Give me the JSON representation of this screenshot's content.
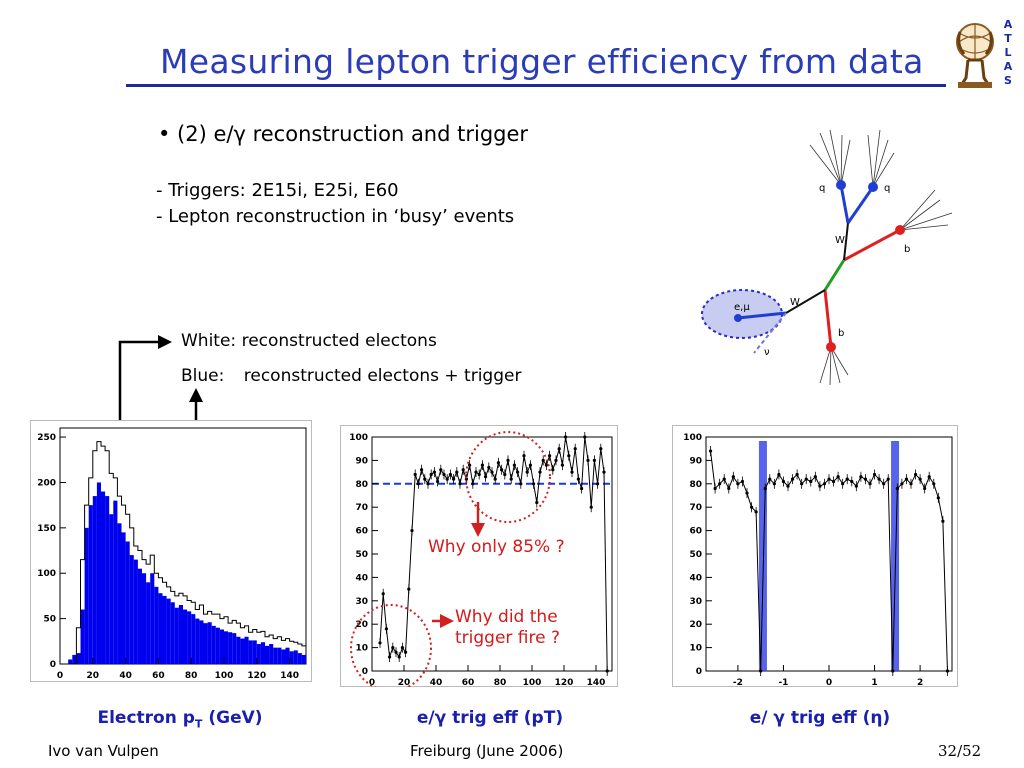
{
  "slide": {
    "title": "Measuring lepton trigger efficiency from data",
    "bullet": "• (2) e/γ reconstruction and trigger",
    "sub_lines": [
      "- Triggers: 2E15i, E25i, E60",
      "- Lepton reconstruction in ‘busy’ events"
    ],
    "legend_white_key": "White:",
    "legend_white_text": "reconstructed electons",
    "legend_blue_key": "Blue:",
    "legend_blue_text": "reconstructed electons + trigger",
    "annotation_85": "Why only 85% ?",
    "annotation_fire_1": "Why did the",
    "annotation_fire_2": "trigger fire ?",
    "footer_left": "Ivo van Vulpen",
    "footer_center": "Freiburg (June 2006)",
    "footer_right": "32/52",
    "logo_letters": [
      "A",
      "T",
      "L",
      "A",
      "S"
    ]
  },
  "diagram": {
    "labels": [
      "q",
      "q",
      "W",
      "b",
      "W",
      "e,μ",
      "ν",
      "b"
    ],
    "colors": {
      "quark_jets": "#1f3fd0",
      "b_jet": "#e02020",
      "top": "#20a020",
      "lepton_ellipse": "#c8ccf0",
      "lepton_border": "#2a2ad0"
    }
  },
  "chart_data": [
    {
      "type": "bar",
      "caption_main": "Electron p",
      "caption_sub": "T",
      "caption_unit": " (GeV)",
      "xlim": [
        0,
        150
      ],
      "ylim": [
        0,
        260
      ],
      "xticks": [
        "0",
        "20",
        "40",
        "60",
        "80",
        "100",
        "120",
        "140"
      ],
      "yticks": [
        "0",
        "50",
        "100",
        "150",
        "200",
        "250"
      ],
      "bin_width": 2.5,
      "series": [
        {
          "name": "White",
          "fill": "#ffffff",
          "values": [
            0,
            0,
            0,
            0,
            40,
            115,
            175,
            205,
            235,
            245,
            240,
            235,
            210,
            205,
            185,
            175,
            165,
            150,
            130,
            125,
            115,
            110,
            120,
            100,
            95,
            90,
            85,
            80,
            75,
            78,
            75,
            70,
            68,
            60,
            65,
            55,
            58,
            55,
            55,
            50,
            52,
            45,
            48,
            45,
            40,
            42,
            35,
            38,
            35,
            36,
            30,
            32,
            28,
            30,
            26,
            28,
            25,
            24,
            22,
            20
          ]
        },
        {
          "name": "Blue",
          "fill": "#0000ee",
          "values": [
            0,
            0,
            5,
            10,
            12,
            60,
            150,
            175,
            185,
            200,
            190,
            185,
            165,
            180,
            155,
            145,
            135,
            120,
            115,
            105,
            100,
            90,
            100,
            85,
            78,
            75,
            72,
            68,
            62,
            65,
            60,
            58,
            55,
            50,
            48,
            45,
            46,
            42,
            40,
            38,
            36,
            35,
            34,
            30,
            28,
            30,
            26,
            26,
            22,
            24,
            20,
            22,
            18,
            18,
            16,
            18,
            14,
            15,
            12,
            10
          ]
        }
      ]
    },
    {
      "type": "scatter",
      "caption": "e/γ trig eff (pT)",
      "xlim": [
        0,
        150
      ],
      "ylim": [
        0,
        100
      ],
      "xticks": [
        "0",
        "20",
        "40",
        "60",
        "80",
        "100",
        "120",
        "140"
      ],
      "yticks": [
        "0",
        "10",
        "20",
        "30",
        "40",
        "50",
        "60",
        "70",
        "80",
        "90",
        "100"
      ],
      "reference_line": 80,
      "points": [
        [
          5,
          12
        ],
        [
          7,
          33
        ],
        [
          9,
          18
        ],
        [
          11,
          6
        ],
        [
          13,
          10
        ],
        [
          15,
          8
        ],
        [
          17,
          6
        ],
        [
          19,
          10
        ],
        [
          21,
          8
        ],
        [
          23,
          35
        ],
        [
          25,
          60
        ],
        [
          27,
          84
        ],
        [
          29,
          80
        ],
        [
          31,
          86
        ],
        [
          33,
          82
        ],
        [
          35,
          80
        ],
        [
          37,
          84
        ],
        [
          39,
          85
        ],
        [
          41,
          81
        ],
        [
          43,
          86
        ],
        [
          45,
          84
        ],
        [
          47,
          82
        ],
        [
          49,
          84
        ],
        [
          51,
          82
        ],
        [
          53,
          85
        ],
        [
          55,
          80
        ],
        [
          57,
          86
        ],
        [
          59,
          82
        ],
        [
          61,
          88
        ],
        [
          63,
          80
        ],
        [
          65,
          85
        ],
        [
          67,
          84
        ],
        [
          69,
          88
        ],
        [
          71,
          83
        ],
        [
          73,
          87
        ],
        [
          75,
          85
        ],
        [
          77,
          82
        ],
        [
          79,
          89
        ],
        [
          81,
          86
        ],
        [
          83,
          84
        ],
        [
          85,
          90
        ],
        [
          87,
          82
        ],
        [
          89,
          88
        ],
        [
          91,
          85
        ],
        [
          93,
          80
        ],
        [
          95,
          92
        ],
        [
          97,
          85
        ],
        [
          99,
          88
        ],
        [
          101,
          80
        ],
        [
          103,
          72
        ],
        [
          105,
          85
        ],
        [
          107,
          90
        ],
        [
          109,
          88
        ],
        [
          111,
          92
        ],
        [
          113,
          86
        ],
        [
          115,
          90
        ],
        [
          117,
          95
        ],
        [
          119,
          88
        ],
        [
          121,
          100
        ],
        [
          123,
          92
        ],
        [
          125,
          85
        ],
        [
          127,
          95
        ],
        [
          129,
          82
        ],
        [
          131,
          78
        ],
        [
          133,
          100
        ],
        [
          135,
          90
        ],
        [
          137,
          70
        ],
        [
          139,
          90
        ],
        [
          141,
          80
        ],
        [
          143,
          95
        ],
        [
          145,
          85
        ],
        [
          147,
          0
        ]
      ]
    },
    {
      "type": "scatter",
      "caption": "e/ γ trig eff (η)",
      "xlim": [
        -2.7,
        2.7
      ],
      "ylim": [
        0,
        100
      ],
      "xticks": [
        "-2",
        "-1",
        "0",
        "1",
        "2"
      ],
      "yticks": [
        "0",
        "10",
        "20",
        "30",
        "40",
        "50",
        "60",
        "70",
        "80",
        "90",
        "100"
      ],
      "bands": [
        {
          "x": -1.45,
          "color": "#3a48e8"
        },
        {
          "x": 1.45,
          "color": "#3a48e8"
        }
      ],
      "points": [
        [
          -2.6,
          94
        ],
        [
          -2.5,
          78
        ],
        [
          -2.4,
          80
        ],
        [
          -2.3,
          82
        ],
        [
          -2.2,
          78
        ],
        [
          -2.1,
          83
        ],
        [
          -2.0,
          80
        ],
        [
          -1.9,
          81
        ],
        [
          -1.8,
          76
        ],
        [
          -1.7,
          70
        ],
        [
          -1.6,
          68
        ],
        [
          -1.5,
          0
        ],
        [
          -1.4,
          78
        ],
        [
          -1.3,
          82
        ],
        [
          -1.2,
          80
        ],
        [
          -1.1,
          84
        ],
        [
          -1.0,
          81
        ],
        [
          -0.9,
          79
        ],
        [
          -0.8,
          82
        ],
        [
          -0.7,
          84
        ],
        [
          -0.6,
          80
        ],
        [
          -0.5,
          82
        ],
        [
          -0.4,
          81
        ],
        [
          -0.3,
          83
        ],
        [
          -0.2,
          79
        ],
        [
          -0.1,
          80
        ],
        [
          0.0,
          82
        ],
        [
          0.1,
          81
        ],
        [
          0.2,
          83
        ],
        [
          0.3,
          80
        ],
        [
          0.4,
          82
        ],
        [
          0.5,
          81
        ],
        [
          0.6,
          79
        ],
        [
          0.7,
          83
        ],
        [
          0.8,
          82
        ],
        [
          0.9,
          80
        ],
        [
          1.0,
          84
        ],
        [
          1.1,
          82
        ],
        [
          1.2,
          80
        ],
        [
          1.3,
          82
        ],
        [
          1.4,
          0
        ],
        [
          1.5,
          78
        ],
        [
          1.6,
          80
        ],
        [
          1.7,
          82
        ],
        [
          1.8,
          80
        ],
        [
          1.9,
          84
        ],
        [
          2.0,
          82
        ],
        [
          2.1,
          78
        ],
        [
          2.2,
          83
        ],
        [
          2.3,
          80
        ],
        [
          2.4,
          74
        ],
        [
          2.5,
          64
        ],
        [
          2.6,
          0
        ]
      ]
    }
  ]
}
